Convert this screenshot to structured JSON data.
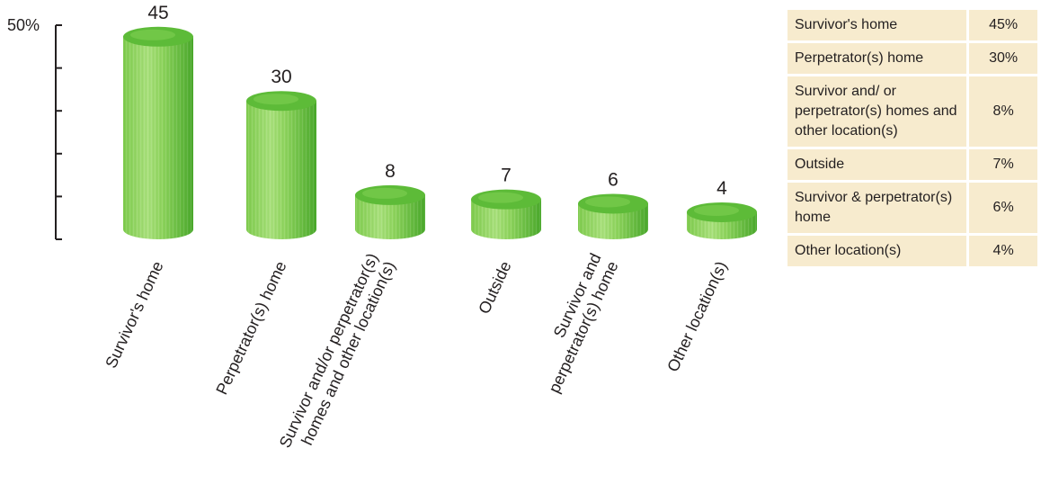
{
  "colors": {
    "bar_light": "#a9e07c",
    "bar_mid": "#7fcb4e",
    "bar_dark": "#4aa82c",
    "bar_top": "#5dbb38",
    "table_bg": "#f7ebce",
    "axis": "#231f20"
  },
  "chart_data": {
    "type": "bar",
    "style": "3d-cylinder",
    "categories": [
      "Survivor's home",
      "Perpetrator(s) home",
      "Survivor and/or perpetrator(s) homes and other location(s)",
      "Outside",
      "Survivor and perpetrator(s) home",
      "Other location(s)"
    ],
    "category_label_lines": [
      [
        "Survivor's home"
      ],
      [
        "Perpetrator(s) home"
      ],
      [
        "Survivor and/or perpetrator(s)",
        "homes and other location(s)"
      ],
      [
        "Outside"
      ],
      [
        "Survivor and",
        "perpetrator(s) home"
      ],
      [
        "Other location(s)"
      ]
    ],
    "values": [
      45,
      30,
      8,
      7,
      6,
      4
    ],
    "value_labels": [
      "45",
      "30",
      "8",
      "7",
      "6",
      "4"
    ],
    "ylim": [
      0,
      50
    ],
    "y_tick_label": "50%",
    "y_tick_count": 5,
    "title": "",
    "xlabel": "",
    "ylabel": "",
    "grid": false
  },
  "table": {
    "rows": [
      {
        "category": "Survivor's home",
        "percent": "45%"
      },
      {
        "category": "Perpetrator(s) home",
        "percent": "30%"
      },
      {
        "category": "Survivor and/ or perpetrator(s) homes and other location(s)",
        "percent": "8%"
      },
      {
        "category": "Outside",
        "percent": "7%"
      },
      {
        "category": "Survivor & perpetrator(s) home",
        "percent": "6%"
      },
      {
        "category": "Other location(s)",
        "percent": "4%"
      }
    ]
  }
}
